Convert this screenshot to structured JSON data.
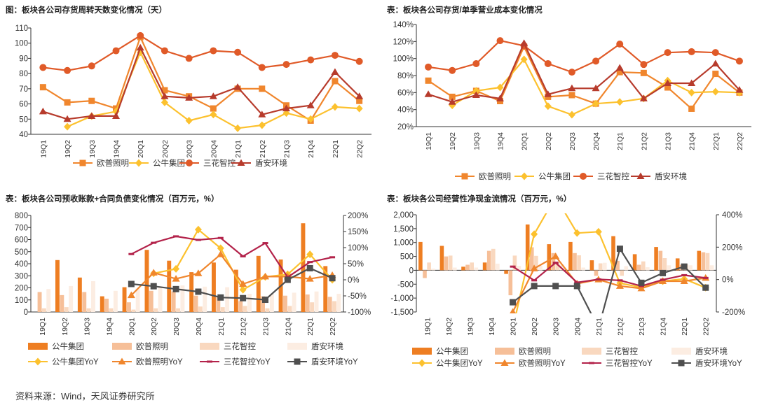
{
  "source_note": "资料来源：Wind，天风证券研究所",
  "colors": {
    "op": "#F0862D",
    "gn": "#FCC12E",
    "sh": "#E05A28",
    "da": "#B73B2C",
    "gn_bar": "#EE7E22",
    "op_bar": "#F6BF98",
    "sh_bar": "#F9D8BF",
    "da_bar": "#FCEDE2",
    "sh_yoy": "#B3224A",
    "da_yoy": "#4F4F4F"
  },
  "chart_data": [
    {
      "id": "c1",
      "type": "line",
      "title": "图：板块各公司存货周转天数变化情况（天）",
      "categories": [
        "19Q1",
        "19Q2",
        "19Q3",
        "19Q4",
        "20Q1",
        "20Q2",
        "20Q3",
        "20Q4",
        "21Q1",
        "21Q2",
        "21Q3",
        "21Q4",
        "22Q1",
        "22Q2"
      ],
      "ylim": [
        40,
        110
      ],
      "yticks": [
        40,
        50,
        60,
        70,
        80,
        90,
        100,
        110
      ],
      "ytick_labels": [
        "40",
        "50",
        "60",
        "70",
        "80",
        "90",
        "100",
        "110"
      ],
      "series": [
        {
          "key": "op",
          "name": "欧普照明",
          "marker": "square",
          "values": [
            71,
            61,
            62,
            57,
            104,
            69,
            65,
            57,
            70,
            70,
            59,
            49,
            75,
            62
          ]
        },
        {
          "key": "gn",
          "name": "公牛集团",
          "marker": "diamond",
          "values": [
            null,
            45,
            52,
            55,
            94,
            61,
            49,
            53,
            44,
            46,
            54,
            50,
            58,
            57
          ]
        },
        {
          "key": "sh",
          "name": "三花智控",
          "marker": "circle",
          "values": [
            84,
            82,
            85,
            95,
            105,
            95,
            90,
            95,
            94,
            84,
            86,
            89,
            92,
            88
          ]
        },
        {
          "key": "da",
          "name": "盾安环境",
          "marker": "triangle",
          "values": [
            55,
            50,
            52,
            52,
            97,
            65,
            64,
            65,
            71,
            53,
            57,
            59,
            81,
            65
          ]
        }
      ]
    },
    {
      "id": "c2",
      "type": "line",
      "title": "表：板块各公司存货/单季营业成本变化情况",
      "categories": [
        "19Q1",
        "19Q2",
        "19Q3",
        "19Q4",
        "20Q1",
        "20Q2",
        "20Q3",
        "20Q4",
        "21Q1",
        "21Q2",
        "21Q3",
        "21Q4",
        "22Q1",
        "22Q2"
      ],
      "ylim": [
        20,
        140
      ],
      "yticks": [
        20,
        40,
        60,
        80,
        100,
        120,
        140
      ],
      "ytick_labels": [
        "20%",
        "40%",
        "60%",
        "80%",
        "100%",
        "120%",
        "140%"
      ],
      "series": [
        {
          "key": "op",
          "name": "欧普照明",
          "marker": "square",
          "values": [
            74,
            55,
            62,
            50,
            114,
            55,
            57,
            47,
            84,
            83,
            66,
            41,
            82,
            60
          ]
        },
        {
          "key": "gn",
          "name": "公牛集团",
          "marker": "diamond",
          "values": [
            null,
            45,
            62,
            66,
            99,
            44,
            34,
            47,
            49,
            53,
            74,
            60,
            61,
            60
          ]
        },
        {
          "key": "sh",
          "name": "三花智控",
          "marker": "circle",
          "values": [
            90,
            86,
            94,
            121,
            115,
            94,
            84,
            97,
            117,
            93,
            107,
            108,
            107,
            97
          ]
        },
        {
          "key": "da",
          "name": "盾安环境",
          "marker": "triangle",
          "values": [
            58,
            49,
            57,
            53,
            118,
            58,
            65,
            65,
            89,
            53,
            71,
            71,
            94,
            63
          ]
        }
      ]
    },
    {
      "id": "c3",
      "type": "bar",
      "title": "表：板块各公司预收账款+合同负债变化情况（百万元，%）",
      "categories": [
        "19Q1",
        "19Q2",
        "19Q3",
        "19Q4",
        "20Q1",
        "20Q2",
        "20Q3",
        "20Q4",
        "21Q1",
        "21Q2",
        "21Q3",
        "21Q4",
        "22Q1",
        "22Q2"
      ],
      "ylim": [
        0,
        800
      ],
      "yticks": [
        0,
        100,
        200,
        300,
        400,
        500,
        600,
        700,
        800
      ],
      "ytick_labels": [
        "0",
        "100",
        "200",
        "300",
        "400",
        "500",
        "600",
        "700",
        "800"
      ],
      "y2lim": [
        -100,
        200
      ],
      "y2ticks": [
        -100,
        -50,
        0,
        50,
        100,
        150,
        200
      ],
      "y2tick_labels": [
        "-100%",
        "-50%",
        "0%",
        "50%",
        "100%",
        "150%",
        "200%"
      ],
      "bar_series": [
        {
          "key": "gn_bar",
          "name": "公牛集团",
          "values": [
            0,
            430,
            285,
            130,
            205,
            515,
            425,
            330,
            410,
            350,
            465,
            435,
            735,
            380
          ]
        },
        {
          "key": "op_bar",
          "name": "欧普照明",
          "values": [
            165,
            140,
            165,
            110,
            80,
            175,
            170,
            135,
            120,
            90,
            130,
            135,
            145,
            125
          ]
        },
        {
          "key": "sh_bar",
          "name": "三花智控",
          "values": [
            30,
            40,
            30,
            30,
            20,
            30,
            30,
            45,
            40,
            50,
            30,
            50,
            80,
            90
          ]
        },
        {
          "key": "da_bar",
          "name": "盾安环境",
          "values": [
            190,
            215,
            255,
            175,
            195,
            200,
            220,
            210,
            205,
            150,
            150,
            160,
            170,
            150
          ]
        }
      ],
      "line_series": [
        {
          "key": "gn",
          "name": "公牛集团YoY",
          "marker": "diamond",
          "values": [
            null,
            null,
            null,
            null,
            null,
            20,
            34,
            156,
            98,
            -31,
            9,
            17,
            79,
            0
          ]
        },
        {
          "key": "op",
          "name": "欧普照明YoY",
          "marker": "triangle",
          "values": [
            null,
            null,
            null,
            null,
            -48,
            22,
            3,
            20,
            79,
            -13,
            10,
            10,
            3,
            14
          ]
        },
        {
          "key": "sh_yoy",
          "name": "三花智控YoY",
          "marker": "dash",
          "values": [
            null,
            null,
            null,
            null,
            80,
            115,
            135,
            124,
            130,
            73,
            114,
            8,
            55,
            70
          ]
        },
        {
          "key": "da_yoy",
          "name": "盾安环境YoY",
          "marker": "square",
          "values": [
            null,
            null,
            null,
            null,
            -13,
            -20,
            -29,
            -37,
            -55,
            -57,
            -62,
            0,
            36,
            5
          ]
        }
      ]
    },
    {
      "id": "c4",
      "type": "bar",
      "title": "表：板块各公司经营性净现金流情况（百万元，%）",
      "categories": [
        "19Q1",
        "19Q2",
        "19Q3",
        "19Q4",
        "20Q1",
        "20Q2",
        "20Q3",
        "20Q4",
        "21Q1",
        "21Q2",
        "21Q3",
        "21Q4",
        "22Q1",
        "22Q2"
      ],
      "ylim": [
        -1500,
        2000
      ],
      "yticks": [
        -1500,
        -1000,
        -500,
        0,
        500,
        1000,
        1500,
        2000
      ],
      "ytick_labels": [
        "-1,500",
        "-1,000",
        "-500",
        "0",
        "500",
        "1,000",
        "1,500",
        "2,000"
      ],
      "y2lim": [
        -200,
        400
      ],
      "y2ticks": [
        -200,
        0,
        200,
        400
      ],
      "y2tick_labels": [
        "-200%",
        "0%",
        "200%",
        "400%"
      ],
      "bar_series": [
        {
          "key": "gn_bar",
          "name": "公牛集团",
          "values": [
            1020,
            880,
            130,
            280,
            -130,
            1650,
            940,
            1020,
            360,
            1230,
            580,
            840,
            430,
            700
          ]
        },
        {
          "key": "op_bar",
          "name": "欧普照明",
          "values": [
            -280,
            500,
            200,
            700,
            -900,
            830,
            620,
            620,
            -200,
            340,
            200,
            700,
            200,
            650
          ]
        },
        {
          "key": "sh_bar",
          "name": "三花智控",
          "values": [
            280,
            530,
            280,
            770,
            530,
            520,
            300,
            540,
            250,
            -200,
            320,
            440,
            220,
            620
          ]
        },
        {
          "key": "da_bar",
          "name": "盾安环境",
          "values": [
            60,
            100,
            100,
            240,
            160,
            170,
            200,
            100,
            270,
            150,
            110,
            180,
            180,
            180
          ]
        }
      ],
      "line_series": [
        {
          "key": "gn",
          "name": "公牛集团YoY",
          "marker": "diamond",
          "values": [
            null,
            null,
            null,
            null,
            -300,
            280,
            510,
            287,
            295,
            -22,
            -48,
            -10,
            4,
            -50
          ]
        },
        {
          "key": "op",
          "name": "欧普照明YoY",
          "marker": "triangle",
          "values": [
            null,
            null,
            null,
            null,
            -200,
            68,
            143,
            -25,
            0,
            -40,
            -55,
            -10,
            -10,
            10
          ]
        },
        {
          "key": "sh_yoy",
          "name": "三花智控YoY",
          "marker": "dash",
          "values": [
            null,
            null,
            null,
            null,
            80,
            -5,
            104,
            -18,
            1,
            -5,
            -40,
            -1,
            27,
            10
          ]
        },
        {
          "key": "da_yoy",
          "name": "盾安环境YoY",
          "marker": "square",
          "values": [
            null,
            null,
            null,
            null,
            -140,
            -40,
            -40,
            -40,
            -300,
            190,
            -20,
            40,
            80,
            -50
          ]
        }
      ]
    }
  ]
}
